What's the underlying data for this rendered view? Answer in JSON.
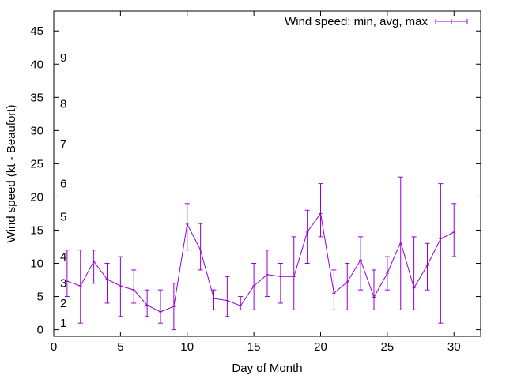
{
  "chart_data": {
    "type": "line",
    "title": "",
    "xlabel": "Day of Month",
    "ylabel": "Wind speed (kt - Beaufort)",
    "xlim": [
      0,
      32
    ],
    "ylim": [
      -1,
      48
    ],
    "x_ticks": [
      0,
      5,
      10,
      15,
      20,
      25,
      30
    ],
    "y_ticks": [
      0,
      5,
      10,
      15,
      20,
      25,
      30,
      35,
      40,
      45
    ],
    "beaufort_scale": [
      {
        "label": "1",
        "kt": 1
      },
      {
        "label": "2",
        "kt": 4
      },
      {
        "label": "3",
        "kt": 7
      },
      {
        "label": "4",
        "kt": 11
      },
      {
        "label": "5",
        "kt": 17
      },
      {
        "label": "6",
        "kt": 22
      },
      {
        "label": "7",
        "kt": 28
      },
      {
        "label": "8",
        "kt": 34
      },
      {
        "label": "9",
        "kt": 41
      }
    ],
    "legend": {
      "position": "top-right"
    },
    "series": [
      {
        "name": "Wind speed: min, avg, max",
        "color": "#9400d3",
        "x": [
          1,
          2,
          3,
          4,
          5,
          6,
          7,
          8,
          9,
          10,
          11,
          12,
          13,
          14,
          15,
          16,
          17,
          18,
          19,
          20,
          21,
          22,
          23,
          24,
          25,
          26,
          27,
          28,
          29,
          30
        ],
        "avg": [
          7.3,
          6.6,
          10.3,
          7.6,
          6.6,
          6.0,
          3.7,
          2.7,
          3.5,
          15.9,
          12.0,
          4.7,
          4.4,
          3.6,
          6.6,
          8.3,
          8.0,
          8.0,
          14.7,
          17.5,
          5.5,
          7.2,
          10.5,
          4.9,
          8.5,
          13.2,
          6.3,
          9.7,
          13.7,
          14.7
        ],
        "min": [
          5,
          1,
          7,
          4,
          2,
          4,
          2,
          1,
          0,
          12,
          9,
          3,
          2,
          3,
          3,
          5,
          4,
          3,
          10,
          14,
          3,
          3,
          6,
          3,
          6,
          3,
          3,
          6,
          1,
          11
        ],
        "max": [
          12,
          12,
          12,
          10,
          11,
          9,
          6,
          6,
          7,
          19,
          16,
          6,
          8,
          5,
          10,
          12,
          10,
          14,
          18,
          22,
          9,
          10,
          14,
          9,
          11,
          23,
          14,
          13,
          22,
          19
        ]
      }
    ]
  }
}
